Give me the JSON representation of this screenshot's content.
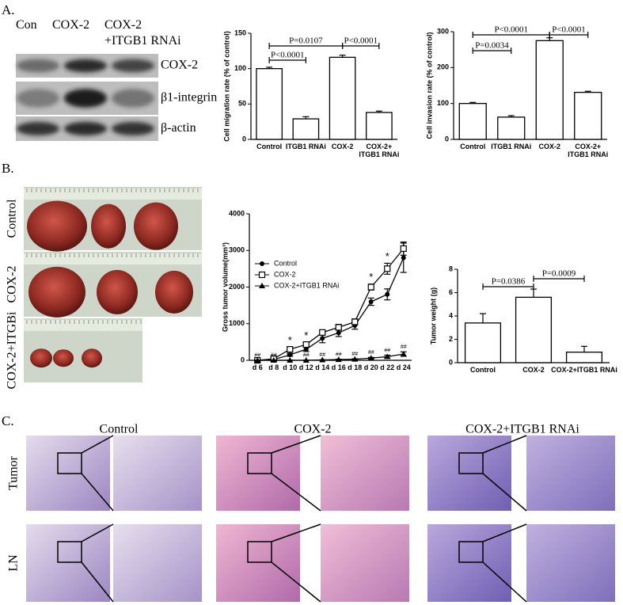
{
  "panel_labels": [
    "A.",
    "B.",
    "C."
  ],
  "blot": {
    "lanes": [
      "Con",
      "COX-2",
      "COX-2\n+ITGB1 RNAi"
    ],
    "bands": [
      "COX-2",
      "β1-integrin",
      "β-actin"
    ]
  },
  "photos": {
    "rows": [
      "Control",
      "COX-2",
      "COX-2+ITGBi"
    ]
  },
  "histology": {
    "columns": [
      "Control",
      "COX-2",
      "COX-2+ITGB1 RNAi"
    ],
    "rows": [
      "Tumor",
      "LN"
    ]
  },
  "chart_data": [
    {
      "type": "bar",
      "ylabel": "Cell migration rate (% of control)",
      "categories": [
        "Control",
        "ITGB1 RNAi",
        "COX-2",
        "COX-2+\nITGB1 RNAi"
      ],
      "values": [
        100,
        29,
        116,
        38
      ],
      "errors": [
        2,
        3,
        3,
        2
      ],
      "color": "#ffffff",
      "ylim": [
        0,
        150
      ],
      "yticks": [
        0,
        50,
        100,
        150
      ],
      "annotations": [
        "P=0.0107",
        "P<0.0001",
        "P<0.0001"
      ]
    },
    {
      "type": "bar",
      "ylabel": "Cell invasion rate (% of control)",
      "categories": [
        "Control",
        "ITGB1 RNAi",
        "COX-2",
        "COX-2+\nITGB1 RNAi"
      ],
      "values": [
        100,
        62,
        275,
        131
      ],
      "errors": [
        3,
        4,
        8,
        3
      ],
      "color": "#ffffff",
      "ylim": [
        0,
        300
      ],
      "yticks": [
        0,
        100,
        200,
        300
      ],
      "annotations": [
        "P<0.0001",
        "P=0.0034",
        "P<0.0001"
      ]
    },
    {
      "type": "line",
      "ylabel": "Gross tumor volume(mm³)",
      "categories": [
        "d 6",
        "d 8",
        "d 10",
        "d 12",
        "d 14",
        "d 16",
        "d 18",
        "d 20",
        "d 22",
        "d 24"
      ],
      "series": [
        {
          "name": "Control",
          "color": "#000000",
          "marker": "circle",
          "values": [
            0,
            20,
            150,
            300,
            600,
            750,
            950,
            1600,
            1800,
            2800
          ],
          "errors": [
            10,
            20,
            40,
            60,
            120,
            100,
            100,
            100,
            150,
            400
          ]
        },
        {
          "name": "COX-2",
          "color": "#000000",
          "marker": "square",
          "values": [
            0,
            40,
            300,
            430,
            760,
            900,
            1050,
            2000,
            2500,
            3050
          ],
          "errors": [
            10,
            20,
            60,
            60,
            60,
            80,
            80,
            80,
            150,
            180
          ]
        },
        {
          "name": "COX-2+ITGB1 RNAi",
          "color": "#000000",
          "marker": "triangle",
          "values": [
            0,
            0,
            0,
            0,
            10,
            20,
            30,
            60,
            100,
            170
          ],
          "errors": [
            5,
            5,
            5,
            5,
            5,
            10,
            10,
            20,
            40,
            60
          ]
        }
      ],
      "ylim": [
        0,
        4000
      ],
      "yticks": [
        0,
        1000,
        2000,
        3000,
        4000
      ],
      "annotations": [
        "*",
        "##"
      ]
    },
    {
      "type": "bar",
      "ylabel": "Tumor weight (g)",
      "categories": [
        "Control",
        "COX-2",
        "COX-2+ITGB1 RNAi"
      ],
      "values": [
        3.4,
        5.6,
        0.9
      ],
      "errors": [
        0.8,
        0.7,
        0.5
      ],
      "color": "#ffffff",
      "ylim": [
        0,
        8
      ],
      "yticks": [
        0,
        2,
        4,
        6,
        8
      ],
      "annotations": [
        "P=0.0386",
        "P=0.0009"
      ]
    }
  ]
}
